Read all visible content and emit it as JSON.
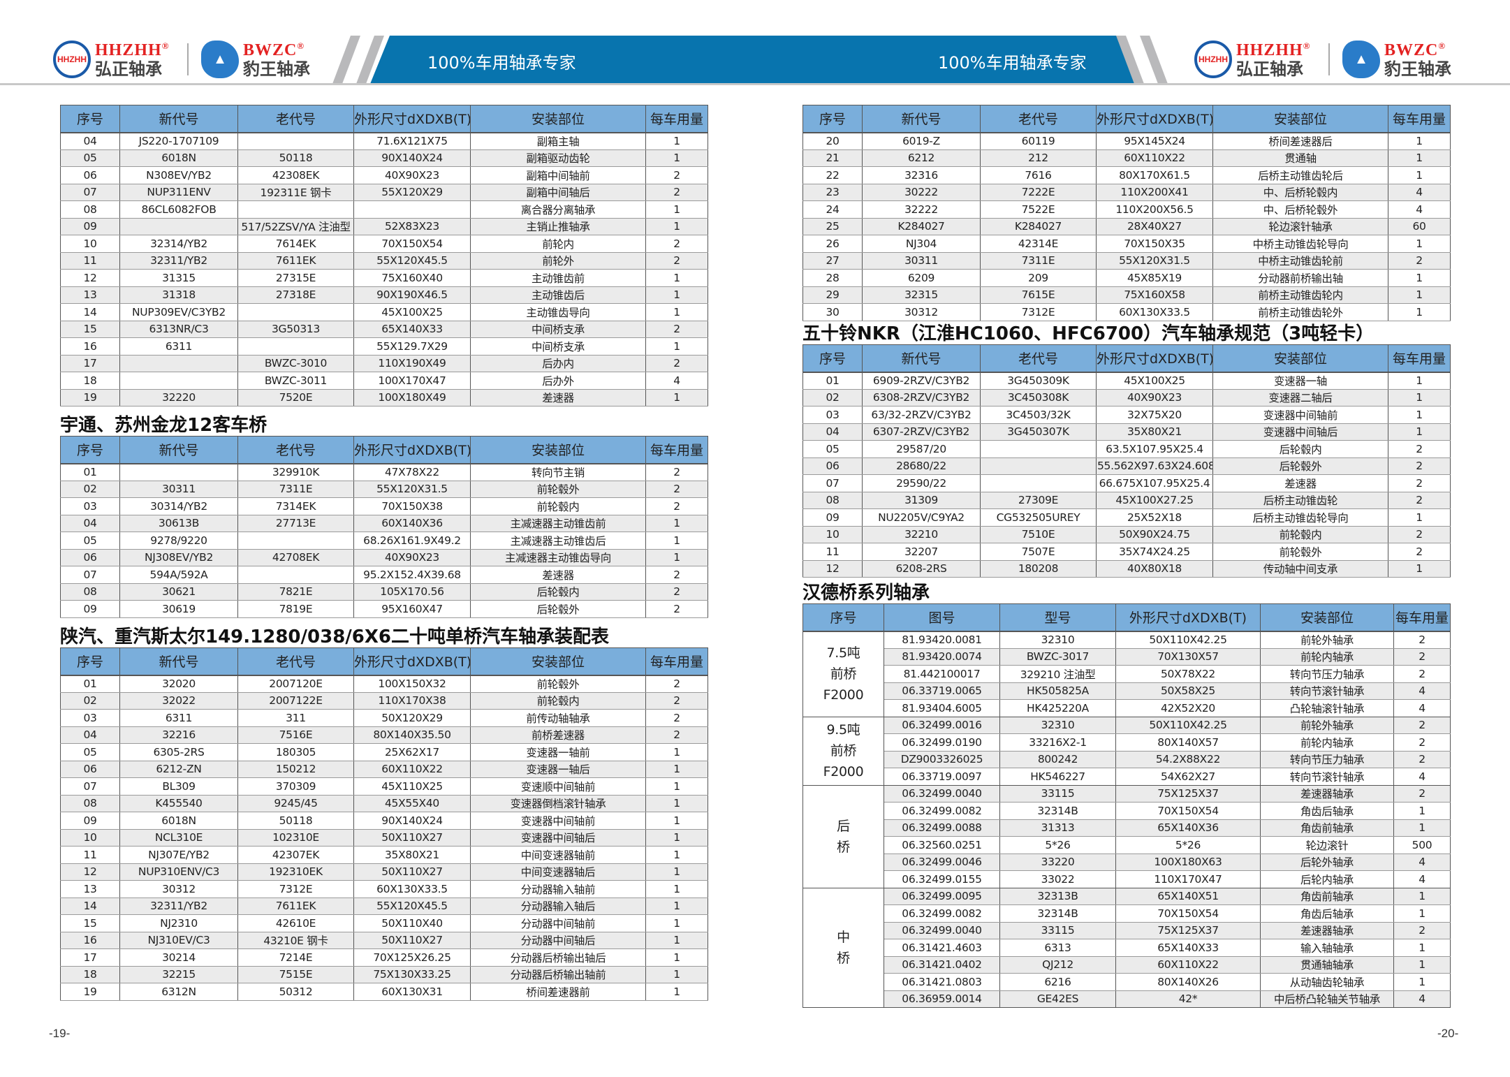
{
  "header": {
    "slogan": "100%车用轴承专家",
    "brands": [
      {
        "en": "HHZHH",
        "cn": "弘正轴承",
        "mark": "HHZHH",
        "icon": "hhzhh-logo-icon"
      },
      {
        "en": "BWZC",
        "cn": "豹王轴承",
        "mark": "",
        "icon": "panther-logo-icon"
      }
    ],
    "registered": "®",
    "colors": {
      "band": "#0874ae",
      "brand_red": "#e32222",
      "table_header": "#7aaedb"
    }
  },
  "tables": {
    "t1": {
      "columns": [
        "序号",
        "新代号",
        "老代号",
        "外形尺寸dXDXB(T)",
        "安装部位",
        "每车用量"
      ],
      "rows": [
        [
          "04",
          "JS220-1707109",
          "",
          "71.6X121X75",
          "副箱主轴",
          "1"
        ],
        [
          "05",
          "6018N",
          "50118",
          "90X140X24",
          "副箱驱动齿轮",
          "1"
        ],
        [
          "06",
          "N308EV/YB2",
          "42308EK",
          "40X90X23",
          "副箱中间轴前",
          "2"
        ],
        [
          "07",
          "NUP311ENV",
          "192311E 钢卡",
          "55X120X29",
          "副箱中间轴后",
          "2"
        ],
        [
          "08",
          "86CL6082FOB",
          "",
          "",
          "离合器分离轴承",
          "1"
        ],
        [
          "09",
          "",
          "517/52ZSV/YA 注油型",
          "52X83X23",
          "主销止推轴承",
          "1"
        ],
        [
          "10",
          "32314/YB2",
          "7614EK",
          "70X150X54",
          "前轮内",
          "2"
        ],
        [
          "11",
          "32311/YB2",
          "7611EK",
          "55X120X45.5",
          "前轮外",
          "2"
        ],
        [
          "12",
          "31315",
          "27315E",
          "75X160X40",
          "主动锥齿前",
          "1"
        ],
        [
          "13",
          "31318",
          "27318E",
          "90X190X46.5",
          "主动锥齿后",
          "1"
        ],
        [
          "14",
          "NUP309EV/C3YB2",
          "",
          "45X100X25",
          "主动锥齿导向",
          "1"
        ],
        [
          "15",
          "6313NR/C3",
          "3G50313",
          "65X140X33",
          "中间桥支承",
          "2"
        ],
        [
          "16",
          "6311",
          "",
          "55X129.7X29",
          "中间桥支承",
          "1"
        ],
        [
          "17",
          "",
          "BWZC-3010",
          "110X190X49",
          "后办内",
          "2"
        ],
        [
          "18",
          "",
          "BWZC-3011",
          "100X170X47",
          "后办外",
          "4"
        ],
        [
          "19",
          "32220",
          "7520E",
          "100X180X49",
          "差速器",
          "1"
        ]
      ]
    },
    "t2": {
      "title": "宇通、苏州金龙12客车桥",
      "columns": [
        "序号",
        "新代号",
        "老代号",
        "外形尺寸dXDXB(T)",
        "安装部位",
        "每车用量"
      ],
      "rows": [
        [
          "01",
          "",
          "329910K",
          "47X78X22",
          "转向节主销",
          "2"
        ],
        [
          "02",
          "30311",
          "7311E",
          "55X120X31.5",
          "前轮毂外",
          "2"
        ],
        [
          "03",
          "30314/YB2",
          "7314EK",
          "70X150X38",
          "前轮毂内",
          "2"
        ],
        [
          "04",
          "30613B",
          "27713E",
          "60X140X36",
          "主减速器主动锥齿前",
          "1"
        ],
        [
          "05",
          "9278/9220",
          "",
          "68.26X161.9X49.2",
          "主减速器主动锥齿后",
          "1"
        ],
        [
          "06",
          "NJ308EV/YB2",
          "42708EK",
          "40X90X23",
          "主减速器主动锥齿导向",
          "1"
        ],
        [
          "07",
          "594A/592A",
          "",
          "95.2X152.4X39.68",
          "差速器",
          "2"
        ],
        [
          "08",
          "30621",
          "7821E",
          "105X170.56",
          "后轮毂内",
          "2"
        ],
        [
          "09",
          "30619",
          "7819E",
          "95X160X47",
          "后轮毂外",
          "2"
        ]
      ]
    },
    "t3": {
      "title": "陕汽、重汽斯太尔149.1280/038/6X6二十吨单桥汽车轴承装配表",
      "columns": [
        "序号",
        "新代号",
        "老代号",
        "外形尺寸dXDXB(T)",
        "安装部位",
        "每车用量"
      ],
      "rows": [
        [
          "01",
          "32020",
          "2007120E",
          "100X150X32",
          "前轮毂外",
          "2"
        ],
        [
          "02",
          "32022",
          "2007122E",
          "110X170X38",
          "前轮毂内",
          "2"
        ],
        [
          "03",
          "6311",
          "311",
          "50X120X29",
          "前传动轴轴承",
          "2"
        ],
        [
          "04",
          "32216",
          "7516E",
          "80X140X35.50",
          "前桥差速器",
          "2"
        ],
        [
          "05",
          "6305-2RS",
          "180305",
          "25X62X17",
          "变速器一轴前",
          "1"
        ],
        [
          "06",
          "6212-ZN",
          "150212",
          "60X110X22",
          "变速器一轴后",
          "1"
        ],
        [
          "07",
          "BL309",
          "370309",
          "45X110X25",
          "变速顺中间轴前",
          "1"
        ],
        [
          "08",
          "K455540",
          "9245/45",
          "45X55X40",
          "变速器倒档滚针轴承",
          "1"
        ],
        [
          "09",
          "6018N",
          "50118",
          "90X140X24",
          "变速器中间轴前",
          "1"
        ],
        [
          "10",
          "NCL310E",
          "102310E",
          "50X110X27",
          "变速器中间轴后",
          "1"
        ],
        [
          "11",
          "NJ307E/YB2",
          "42307EK",
          "35X80X21",
          "中间变速器轴前",
          "1"
        ],
        [
          "12",
          "NUP310ENV/C3",
          "192310EK",
          "50X110X27",
          "中间变速器轴后",
          "1"
        ],
        [
          "13",
          "30312",
          "7312E",
          "60X130X33.5",
          "分动器输入轴前",
          "1"
        ],
        [
          "14",
          "32311/YB2",
          "7611EK",
          "55X120X45.5",
          "分动器输入轴后",
          "1"
        ],
        [
          "15",
          "NJ2310",
          "42610E",
          "50X110X40",
          "分动器中间轴前",
          "1"
        ],
        [
          "16",
          "NJ310EV/C3",
          "43210E 钢卡",
          "50X110X27",
          "分动器中间轴后",
          "1"
        ],
        [
          "17",
          "30214",
          "7214E",
          "70X125X26.25",
          "分动器后桥输出轴后",
          "1"
        ],
        [
          "18",
          "32215",
          "7515E",
          "75X130X33.25",
          "分动器后桥输出轴前",
          "1"
        ],
        [
          "19",
          "6312N",
          "50312",
          "60X130X31",
          "桥间差速器前",
          "1"
        ]
      ]
    },
    "t4": {
      "columns": [
        "序号",
        "新代号",
        "老代号",
        "外形尺寸dXDXB(T)",
        "安装部位",
        "每车用量"
      ],
      "rows": [
        [
          "20",
          "6019-Z",
          "60119",
          "95X145X24",
          "桥间差速器后",
          "1"
        ],
        [
          "21",
          "6212",
          "212",
          "60X110X22",
          "贯通轴",
          "1"
        ],
        [
          "22",
          "32316",
          "7616",
          "80X170X61.5",
          "后桥主动锥齿轮后",
          "1"
        ],
        [
          "23",
          "30222",
          "7222E",
          "110X200X41",
          "中、后桥轮毂内",
          "4"
        ],
        [
          "24",
          "32222",
          "7522E",
          "110X200X56.5",
          "中、后桥轮毂外",
          "4"
        ],
        [
          "25",
          "K284027",
          "K284027",
          "28X40X27",
          "轮边滚针轴承",
          "60"
        ],
        [
          "26",
          "NJ304",
          "42314E",
          "70X150X35",
          "中桥主动锥齿轮导向",
          "1"
        ],
        [
          "27",
          "30311",
          "7311E",
          "55X120X31.5",
          "中桥主动锥齿轮前",
          "2"
        ],
        [
          "28",
          "6209",
          "209",
          "45X85X19",
          "分动器前桥输出轴",
          "1"
        ],
        [
          "29",
          "32315",
          "7615E",
          "75X160X58",
          "前桥主动锥齿轮内",
          "1"
        ],
        [
          "30",
          "30312",
          "7312E",
          "60X130X33.5",
          "前桥主动锥齿轮外",
          "1"
        ]
      ]
    },
    "t5": {
      "title": "五十铃NKR（江淮HC1060、HFC6700）汽车轴承规范（3吨轻卡）",
      "columns": [
        "序号",
        "新代号",
        "老代号",
        "外形尺寸dXDXB(T)",
        "安装部位",
        "每车用量"
      ],
      "rows": [
        [
          "01",
          "6909-2RZV/C3YB2",
          "3G450309K",
          "45X100X25",
          "变速器一轴",
          "1"
        ],
        [
          "02",
          "6308-2RZV/C3YB2",
          "3C450308K",
          "40X90X23",
          "变速器二轴后",
          "1"
        ],
        [
          "03",
          "63/32-2RZV/C3YB2",
          "3C4503/32K",
          "32X75X20",
          "变速器中间轴前",
          "1"
        ],
        [
          "04",
          "6307-2RZV/C3YB2",
          "3G450307K",
          "35X80X21",
          "变速器中间轴后",
          "1"
        ],
        [
          "05",
          "29587/20",
          "",
          "63.5X107.95X25.4",
          "后轮毂内",
          "2"
        ],
        [
          "06",
          "28680/22",
          "",
          "55.562X97.63X24.608",
          "后轮毂外",
          "2"
        ],
        [
          "07",
          "29590/22",
          "",
          "66.675X107.95X25.4",
          "差速器",
          "2"
        ],
        [
          "08",
          "31309",
          "27309E",
          "45X100X27.25",
          "后桥主动锥齿轮",
          "2"
        ],
        [
          "09",
          "NU2205V/C9YA2",
          "CG532505UREY",
          "25X52X18",
          "后桥主动锥齿轮导向",
          "1"
        ],
        [
          "10",
          "32210",
          "7510E",
          "50X90X24.75",
          "前轮毂内",
          "2"
        ],
        [
          "11",
          "32207",
          "7507E",
          "35X74X24.25",
          "前轮毂外",
          "2"
        ],
        [
          "12",
          "6208-2RS",
          "180208",
          "40X80X18",
          "传动轴中间支承",
          "1"
        ]
      ]
    },
    "t6": {
      "title": "汉德桥系列轴承",
      "columns": [
        "序号",
        "图号",
        "型号",
        "外形尺寸dXDXB(T)",
        "安装部位",
        "每车用量"
      ],
      "groups": [
        {
          "label": "7.5吨\n前桥\nF2000",
          "rows": [
            [
              "81.93420.0081",
              "32310",
              "50X110X42.25",
              "前轮外轴承",
              "2"
            ],
            [
              "81.93420.0074",
              "BWZC-3017",
              "70X130X57",
              "前轮内轴承",
              "2"
            ],
            [
              "81.442100017",
              "329210 注油型",
              "50X78X22",
              "转向节压力轴承",
              "2"
            ],
            [
              "06.33719.0065",
              "HK505825A",
              "50X58X25",
              "转向节滚针轴承",
              "4"
            ],
            [
              "81.93404.6005",
              "HK425220A",
              "42X52X20",
              "凸轮轴滚针轴承",
              "4"
            ]
          ]
        },
        {
          "label": "9.5吨\n前桥\nF2000",
          "rows": [
            [
              "06.32499.0016",
              "32310",
              "50X110X42.25",
              "前轮外轴承",
              "2"
            ],
            [
              "06.32499.0190",
              "33216X2-1",
              "80X140X57",
              "前轮内轴承",
              "2"
            ],
            [
              "DZ9003326025",
              "800242",
              "54.2X88X22",
              "转向节压力轴承",
              "2"
            ],
            [
              "06.33719.0097",
              "HK546227",
              "54X62X27",
              "转向节滚针轴承",
              "4"
            ]
          ]
        },
        {
          "label": "后\n桥",
          "rows": [
            [
              "06.32499.0040",
              "33115",
              "75X125X37",
              "差速器轴承",
              "2"
            ],
            [
              "06.32499.0082",
              "32314B",
              "70X150X54",
              "角齿后轴承",
              "1"
            ],
            [
              "06.32499.0088",
              "31313",
              "65X140X36",
              "角齿前轴承",
              "1"
            ],
            [
              "06.32560.0251",
              "5*26",
              "5*26",
              "轮边滚针",
              "500"
            ],
            [
              "06.32499.0046",
              "33220",
              "100X180X63",
              "后轮外轴承",
              "4"
            ],
            [
              "06.32499.0155",
              "33022",
              "110X170X47",
              "后轮内轴承",
              "4"
            ]
          ]
        },
        {
          "label": "中\n桥",
          "rows": [
            [
              "06.32499.0095",
              "32313B",
              "65X140X51",
              "角齿前轴承",
              "1"
            ],
            [
              "06.32499.0082",
              "32314B",
              "70X150X54",
              "角齿后轴承",
              "1"
            ],
            [
              "06.32499.0040",
              "33115",
              "75X125X37",
              "差速器轴承",
              "2"
            ],
            [
              "06.31421.4603",
              "6313",
              "65X140X33",
              "输入轴轴承",
              "1"
            ],
            [
              "06.31421.0402",
              "QJ212",
              "60X110X22",
              "贯通轴轴承",
              "1"
            ],
            [
              "06.31421.0803",
              "6216",
              "80X140X26",
              "从动轴齿轮轴承",
              "1"
            ],
            [
              "06.36959.0014",
              "GE42ES",
              "42*",
              "中后桥凸轮轴关节轴承",
              "4"
            ]
          ]
        }
      ]
    }
  },
  "pages": {
    "left": "-19-",
    "right": "-20-"
  }
}
